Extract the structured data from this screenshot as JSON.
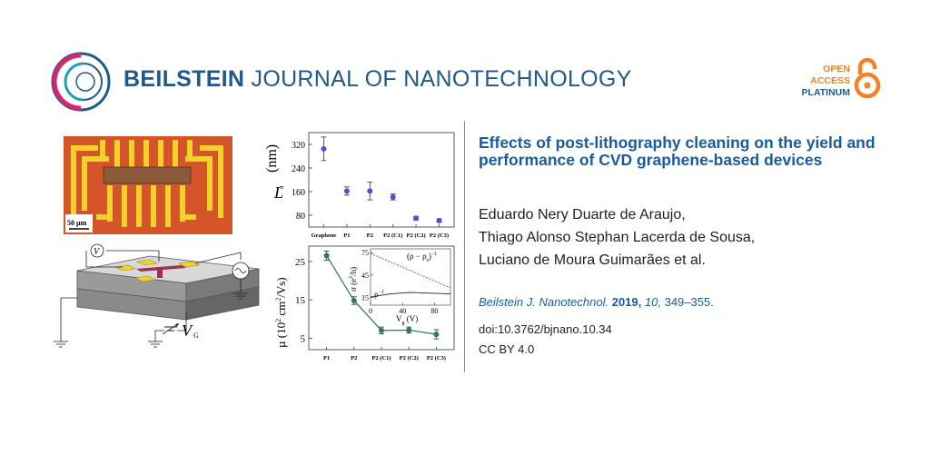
{
  "journal": {
    "name_bold": "BEILSTEIN",
    "name_rest": "JOURNAL OF NANOTECHNOLOGY"
  },
  "open_access": {
    "line1": "OPEN",
    "line2": "ACCESS",
    "line3": "PLATINUM"
  },
  "article": {
    "title": "Effects of post-lithography cleaning on the yield and performance of CVD graphene-based devices",
    "authors": [
      "Eduardo Nery Duarte de Araujo,",
      "Thiago Alonso Stephan Lacerda de Sousa,",
      "Luciano de Moura Guimarães et al."
    ],
    "citation": {
      "journal_abbrev": "Beilstein J. Nanotechnol.",
      "year": "2019,",
      "volume": "10,",
      "pages": "349–355."
    },
    "doi": "doi:10.3762/bjnano.10.34",
    "license": "CC BY 4.0"
  },
  "figure": {
    "scale_bar": "50 µm",
    "voltmeter_label": "V",
    "gate_label": "V",
    "gate_sub": "G"
  },
  "chart_data": [
    {
      "type": "scatter",
      "ylabel": "L",
      "ylabel_sub": "a",
      "ylabel_unit": "(nm)",
      "categories": [
        "Graphene",
        "P1",
        "P2",
        "P2 (C1)",
        "P2 (C2)",
        "P2 (C3)"
      ],
      "values": [
        305,
        162,
        162,
        142,
        70,
        62
      ],
      "errors": [
        40,
        14,
        30,
        10,
        6,
        6
      ],
      "yticks": [
        "80",
        "160",
        "240",
        "320"
      ],
      "ylim": [
        40,
        360
      ],
      "color": "#5050d0"
    },
    {
      "type": "line",
      "ylabel": "µ (10",
      "ylabel_sup": "2",
      "ylabel_unit": " cm",
      "ylabel_sup2": "2",
      "ylabel_end": "/Vs)",
      "categories": [
        "P1",
        "P2",
        "P2 (C1)",
        "P2 (C2)",
        "P2 (C3)"
      ],
      "values": [
        26.5,
        14.8,
        7.0,
        7.1,
        6.0
      ],
      "errors": [
        1.2,
        1.0,
        0.9,
        0.8,
        1.2
      ],
      "yticks": [
        "5",
        "15",
        "25"
      ],
      "ylim": [
        2,
        29
      ],
      "color": "#2a7a5a"
    },
    {
      "type": "line",
      "inset": true,
      "ylabel": "σ (e",
      "ylabel_sup": "2",
      "ylabel_end": "/h)",
      "xlabel": "V",
      "xlabel_sub": "g",
      "xlabel_unit": " (V)",
      "xticks": [
        "0",
        "40",
        "80"
      ],
      "yticks": [
        "15",
        "45",
        "75"
      ],
      "xlim": [
        0,
        100
      ],
      "ylim": [
        5,
        80
      ],
      "series": [
        {
          "label": "(ρ − ρ",
          "label_sub": "s",
          "label_end": ")",
          "label_sup": "−1",
          "x": [
            0,
            100
          ],
          "values": [
            74,
            28
          ],
          "color": "#d03030"
        },
        {
          "label": "ρ",
          "label_sup": "−1",
          "x": [
            0,
            25,
            50,
            75,
            100
          ],
          "values": [
            16,
            20,
            22,
            21,
            20
          ],
          "color": "#222222"
        }
      ]
    }
  ]
}
